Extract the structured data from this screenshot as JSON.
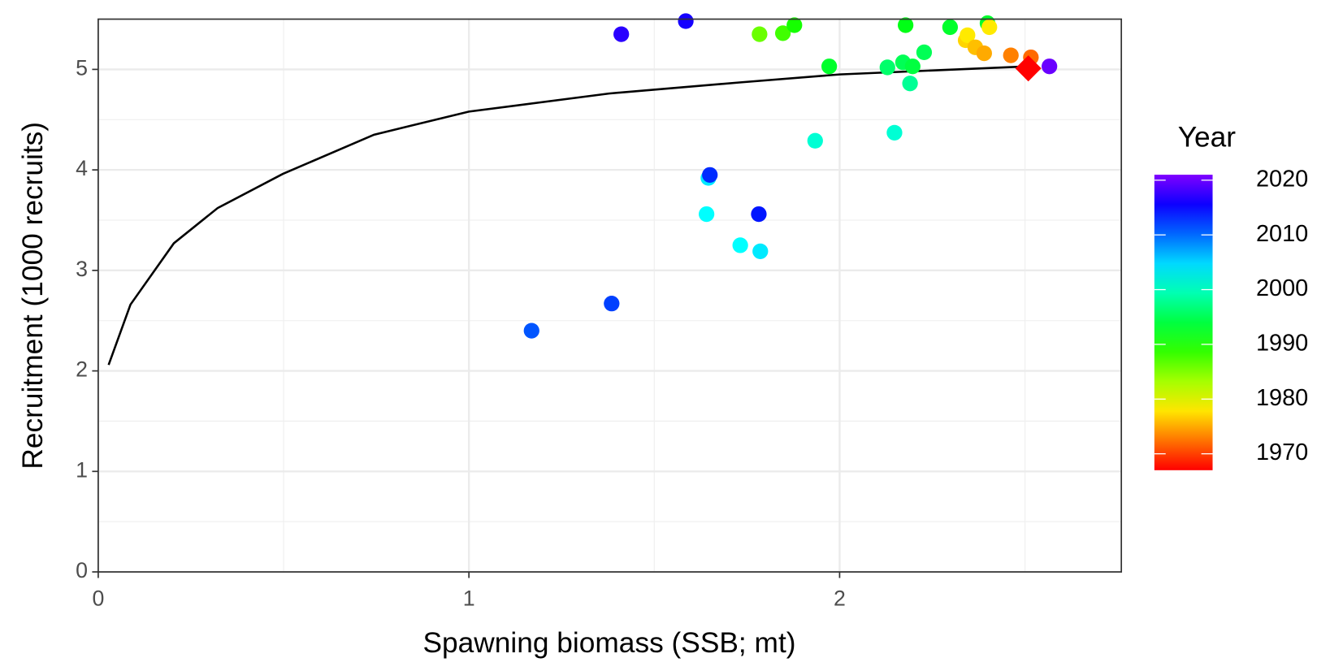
{
  "chart_data": {
    "type": "scatter",
    "x_label": "Spawning biomass (SSB; mt)",
    "y_label": "Recruitment (1000 recruits)",
    "xlim": [
      0,
      2.76
    ],
    "ylim": [
      0,
      5.5
    ],
    "xticks": [
      0,
      1,
      2
    ],
    "yticks": [
      0,
      1,
      2,
      3,
      4,
      5
    ],
    "grid": true,
    "points": {
      "x": [
        1.169,
        1.385,
        1.411,
        1.585,
        1.641,
        1.646,
        1.65,
        1.732,
        1.782,
        1.786,
        1.784,
        1.847,
        1.878,
        1.934,
        1.972,
        2.129,
        2.148,
        2.171,
        2.178,
        2.19,
        2.197,
        2.228,
        2.298,
        2.34,
        2.345,
        2.366,
        2.39,
        2.399,
        2.404,
        2.462,
        2.516,
        2.566
      ],
      "y": [
        2.4,
        2.67,
        5.35,
        5.48,
        3.56,
        3.92,
        3.95,
        3.25,
        3.56,
        3.19,
        5.35,
        5.36,
        5.44,
        4.29,
        5.03,
        5.02,
        4.37,
        5.07,
        5.44,
        4.86,
        5.03,
        5.17,
        5.42,
        5.29,
        5.34,
        5.22,
        5.16,
        5.46,
        5.42,
        5.14,
        5.12,
        5.03
      ],
      "year": [
        2011,
        2012,
        2017,
        2016,
        2003,
        2004,
        2013,
        2003,
        2014,
        2004,
        1986,
        1988,
        1990,
        2001,
        1993,
        1996,
        2001,
        1995,
        1992,
        1998,
        1994,
        1995,
        1993,
        1977,
        1978,
        1976,
        1975,
        1993,
        1978,
        1973,
        1972,
        2020
      ]
    },
    "curve": {
      "color": "#000000",
      "x": [
        0.028,
        0.087,
        0.204,
        0.322,
        0.498,
        0.744,
        1.0,
        1.378,
        1.73,
        2.0,
        2.317,
        2.509
      ],
      "y": [
        2.06,
        2.66,
        3.27,
        3.62,
        3.96,
        4.35,
        4.58,
        4.76,
        4.87,
        4.95,
        5.0,
        5.03
      ]
    },
    "marker": {
      "x": 2.509,
      "y": 5.01,
      "color": "#ff0000"
    },
    "color_scale": {
      "title": "Year",
      "lim": [
        1967,
        2021
      ],
      "ticks": [
        1970,
        1980,
        1990,
        2000,
        2010,
        2020
      ],
      "hue_range": [
        0,
        270
      ]
    }
  }
}
